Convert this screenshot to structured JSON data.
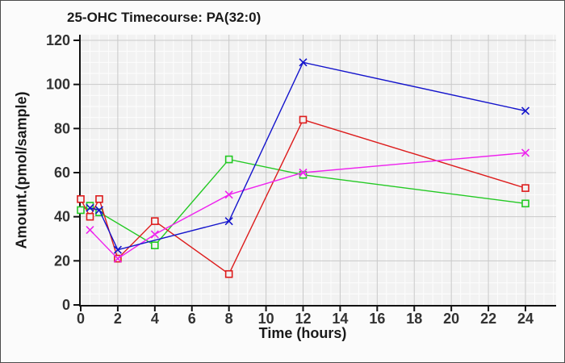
{
  "window": {
    "title": "25-OHC Timecourse: PA(32:0)"
  },
  "chart_data": {
    "type": "line",
    "title": "25-OHC Timecourse: PA(32:0)",
    "xlabel": "Time (hours)",
    "ylabel": "Amount.(pmol/sample)",
    "xlim": [
      0,
      24
    ],
    "ylim": [
      0,
      120
    ],
    "x_ticks": [
      0,
      2,
      4,
      6,
      8,
      10,
      12,
      14,
      16,
      18,
      20,
      22,
      24
    ],
    "y_ticks": [
      0,
      20,
      40,
      60,
      80,
      100,
      120
    ],
    "grid": {
      "major": true,
      "minor": true,
      "x_minor_step": 0.5,
      "y_minor_step": 5
    },
    "legend_position": "none",
    "series": [
      {
        "name": "green-squares",
        "color": "#23c923",
        "marker": "square",
        "points": [
          [
            0,
            43
          ],
          [
            0.5,
            45
          ],
          [
            1,
            42
          ],
          [
            4,
            27
          ],
          [
            8,
            66
          ],
          [
            12,
            59
          ],
          [
            24,
            46
          ]
        ]
      },
      {
        "name": "red-squares",
        "color": "#dd1c1c",
        "marker": "square",
        "points": [
          [
            0,
            48
          ],
          [
            0.5,
            40
          ],
          [
            1,
            48
          ],
          [
            2,
            21
          ],
          [
            4,
            38
          ],
          [
            8,
            14
          ],
          [
            12,
            84
          ],
          [
            24,
            53
          ]
        ]
      },
      {
        "name": "magenta-x",
        "color": "#ee22ee",
        "marker": "x",
        "points": [
          [
            0.5,
            34
          ],
          [
            2,
            21
          ],
          [
            4,
            32
          ],
          [
            8,
            50
          ],
          [
            12,
            60
          ],
          [
            24,
            69
          ]
        ]
      },
      {
        "name": "blue-x",
        "color": "#1414cc",
        "marker": "x",
        "points": [
          [
            0.5,
            44
          ],
          [
            1,
            43
          ],
          [
            2,
            25
          ],
          [
            8,
            38
          ],
          [
            12,
            110
          ],
          [
            24,
            88
          ]
        ]
      }
    ],
    "colors": {
      "plot_background": "#f2f2f2",
      "outer_background": "#fbfbfb",
      "grid_major": "#c9c9c9",
      "grid_minor": "#fdfdfd",
      "axis": "#111111",
      "tick_text": "#333333",
      "title_text": "#1a1a1a"
    }
  }
}
